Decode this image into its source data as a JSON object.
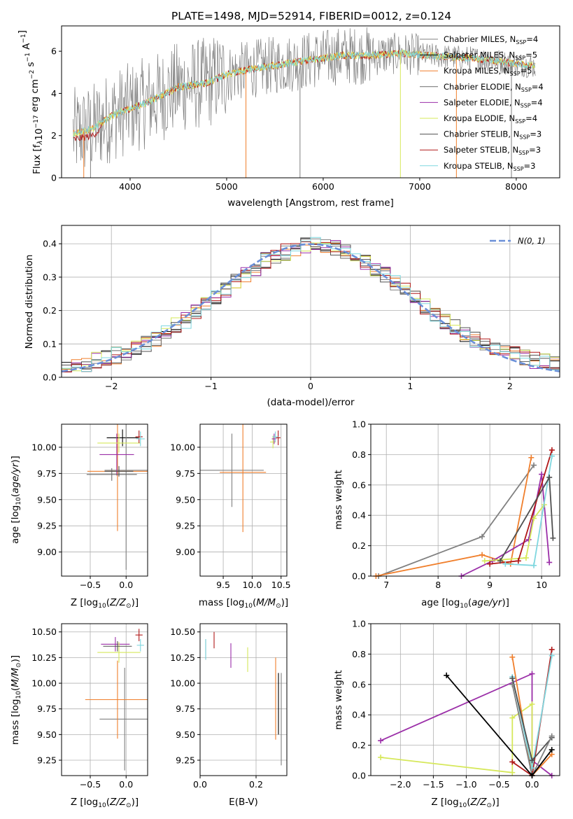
{
  "title": "PLATE=1498, MJD=52914, FIBERID=0012, z=0.124",
  "colors": {
    "Chabrier MILES": "#808080",
    "Salpeter MILES": "#000000",
    "Kroupa MILES": "#f07f2c",
    "Chabrier ELODIE": "#6b6b6b",
    "Salpeter ELODIE": "#9b2fa8",
    "Kroupa ELODIE": "#d6e85a",
    "Chabrier STELIB": "#505050",
    "Salpeter STELIB": "#b01818",
    "Kroupa STELIB": "#7fd7df"
  },
  "legend": [
    {
      "name": "Chabrier MILES",
      "nssp": "4"
    },
    {
      "name": "Salpeter MILES",
      "nssp": "5"
    },
    {
      "name": "Kroupa MILES",
      "nssp": "5"
    },
    {
      "name": "Chabrier ELODIE",
      "nssp": "4"
    },
    {
      "name": "Salpeter ELODIE",
      "nssp": "4"
    },
    {
      "name": "Kroupa ELODIE",
      "nssp": "4"
    },
    {
      "name": "Chabrier STELIB",
      "nssp": "3"
    },
    {
      "name": "Salpeter STELIB",
      "nssp": "3"
    },
    {
      "name": "Kroupa STELIB",
      "nssp": "3"
    }
  ],
  "chart_data": [
    {
      "id": "spectrum",
      "type": "line",
      "xlabel": "wavelength [Angstrom, rest frame]",
      "ylabel_text": "Flux [f",
      "ylabel_rest": "10",
      "ylabel_unit": " erg cm",
      "ylabel_unit2": " s",
      "ylabel_unit3": " A",
      "xlim": [
        3290,
        8450
      ],
      "ylim": [
        0,
        7.2
      ],
      "xticks": [
        4000,
        5000,
        6000,
        7000,
        8000
      ],
      "yticks": [
        0,
        2,
        4,
        6
      ],
      "continuum_x": [
        3410,
        3600,
        3800,
        4000,
        4200,
        4500,
        4800,
        5000,
        5300,
        5600,
        5900,
        6200,
        6500,
        6800,
        7100,
        7400,
        7700,
        8000,
        8200
      ],
      "continuum_y": [
        2.1,
        2.3,
        2.9,
        3.3,
        3.6,
        4.3,
        4.5,
        4.9,
        5.2,
        5.4,
        5.6,
        5.8,
        5.8,
        5.9,
        5.8,
        5.7,
        5.6,
        5.4,
        5.3
      ]
    },
    {
      "id": "residuals",
      "type": "area",
      "xlabel": "(data-model)/error",
      "ylabel": "Normed distribution",
      "xlim": [
        -2.5,
        2.5
      ],
      "ylim": [
        0,
        0.455
      ],
      "xticks": [
        -2,
        -1,
        0,
        1,
        2
      ],
      "yticks": [
        0.0,
        0.1,
        0.2,
        0.3,
        0.4
      ],
      "legend": "N(0, 1)",
      "bin_centers": [
        -2.45,
        -2.35,
        -2.25,
        -2.15,
        -2.05,
        -1.95,
        -1.85,
        -1.75,
        -1.65,
        -1.55,
        -1.45,
        -1.35,
        -1.25,
        -1.15,
        -1.05,
        -0.95,
        -0.85,
        -0.75,
        -0.65,
        -0.55,
        -0.45,
        -0.35,
        -0.25,
        -0.15,
        -0.05,
        0.05,
        0.15,
        0.25,
        0.35,
        0.45,
        0.55,
        0.65,
        0.75,
        0.85,
        0.95,
        1.05,
        1.15,
        1.25,
        1.35,
        1.45,
        1.55,
        1.65,
        1.75,
        1.85,
        1.95,
        2.05,
        2.15,
        2.25,
        2.35,
        2.45
      ],
      "hist": [
        0.025,
        0.03,
        0.04,
        0.05,
        0.06,
        0.065,
        0.075,
        0.09,
        0.1,
        0.115,
        0.14,
        0.155,
        0.17,
        0.195,
        0.215,
        0.235,
        0.26,
        0.285,
        0.305,
        0.325,
        0.35,
        0.36,
        0.375,
        0.385,
        0.395,
        0.4,
        0.395,
        0.385,
        0.375,
        0.36,
        0.345,
        0.325,
        0.305,
        0.285,
        0.26,
        0.235,
        0.21,
        0.185,
        0.165,
        0.15,
        0.13,
        0.115,
        0.1,
        0.09,
        0.08,
        0.07,
        0.06,
        0.05,
        0.045,
        0.04
      ]
    },
    {
      "id": "age-vs-Z",
      "type": "scatter",
      "xlabel": "Z [log",
      "ylabel": "age  [log",
      "xlim": [
        -0.9,
        0.3
      ],
      "ylim": [
        8.77,
        10.22
      ],
      "xticks": [
        -0.5,
        0.0
      ],
      "yticks": [
        9.0,
        9.25,
        9.5,
        9.75,
        10.0
      ],
      "points": [
        {
          "series": "Kroupa MILES",
          "x": -0.12,
          "xerr": 0.42,
          "y": 9.77,
          "yerr": 0.57
        },
        {
          "series": "Salpeter MILES",
          "x": -0.05,
          "xerr": 0.22,
          "y": 10.09,
          "yerr": 0.08
        },
        {
          "series": "Chabrier MILES",
          "x": 0.0,
          "xerr": 0.3,
          "y": 9.78,
          "yerr": 0.95
        },
        {
          "series": "Salpeter ELODIE",
          "x": -0.13,
          "xerr": 0.24,
          "y": 9.93,
          "yerr": 0.2
        },
        {
          "series": "Kroupa ELODIE",
          "x": -0.1,
          "xerr": 0.3,
          "y": 10.04,
          "yerr": 0.09
        },
        {
          "series": "Salpeter STELIB",
          "x": 0.18,
          "xerr": 0.05,
          "y": 10.1,
          "yerr": 0.06
        },
        {
          "series": "Kroupa STELIB",
          "x": 0.2,
          "xerr": 0.06,
          "y": 10.08,
          "yerr": 0.07
        },
        {
          "series": "Chabrier ELODIE",
          "x": -0.2,
          "xerr": 0.35,
          "y": 9.74,
          "yerr": 0.06
        },
        {
          "series": "Chabrier STELIB",
          "x": -0.1,
          "xerr": 0.2,
          "y": 9.77,
          "yerr": 0.05
        }
      ]
    },
    {
      "id": "age-vs-mass",
      "type": "scatter",
      "xlabel": "mass [log",
      "xlim": [
        9.1,
        10.6
      ],
      "ylim": [
        8.77,
        10.22
      ],
      "xticks": [
        9.5,
        10.0,
        10.5
      ],
      "yticks": [
        9.0,
        9.25,
        9.5,
        9.75,
        10.0
      ],
      "points": [
        {
          "series": "Chabrier MILES",
          "x": 9.65,
          "xerr": 0.55,
          "y": 9.78,
          "yerr": 0.35
        },
        {
          "series": "Kroupa MILES",
          "x": 9.84,
          "xerr": 0.4,
          "y": 9.76,
          "yerr": 0.57
        },
        {
          "series": "Salpeter STELIB",
          "x": 10.45,
          "xerr": 0.04,
          "y": 10.09,
          "yerr": 0.07
        },
        {
          "series": "Kroupa ELODIE",
          "x": 10.36,
          "xerr": 0.05,
          "y": 10.05,
          "yerr": 0.06
        },
        {
          "series": "Salpeter ELODIE",
          "x": 10.38,
          "xerr": 0.04,
          "y": 10.08,
          "yerr": 0.05
        },
        {
          "series": "Kroupa STELIB",
          "x": 10.4,
          "xerr": 0.05,
          "y": 10.1,
          "yerr": 0.05
        }
      ]
    },
    {
      "id": "mass-weight-vs-age",
      "type": "line",
      "xlabel": "age  [log",
      "ylabel": "mass weight",
      "xlim": [
        6.7,
        10.35
      ],
      "ylim": [
        0,
        1.0
      ],
      "xticks": [
        7,
        8,
        9,
        10
      ],
      "yticks": [
        0.0,
        0.2,
        0.4,
        0.6,
        0.8,
        1.0
      ],
      "series": [
        {
          "name": "Chabrier MILES",
          "x": [
            6.85,
            8.85,
            9.85
          ],
          "y": [
            0.0,
            0.26,
            0.73
          ]
        },
        {
          "name": "Kroupa MILES",
          "x": [
            6.8,
            8.85,
            9.4,
            9.8
          ],
          "y": [
            0.0,
            0.14,
            0.08,
            0.78
          ]
        },
        {
          "name": "Salpeter ELODIE",
          "x": [
            8.45,
            9.05,
            9.75,
            10.0,
            10.15
          ],
          "y": [
            0.0,
            0.1,
            0.24,
            0.67,
            0.09
          ]
        },
        {
          "name": "Kroupa ELODIE",
          "x": [
            8.9,
            9.7,
            9.85,
            10.05
          ],
          "y": [
            0.1,
            0.12,
            0.38,
            0.47
          ]
        },
        {
          "name": "Salpeter STELIB",
          "x": [
            9.0,
            9.55,
            10.2
          ],
          "y": [
            0.08,
            0.1,
            0.83
          ]
        },
        {
          "name": "Kroupa STELIB",
          "x": [
            9.3,
            9.85,
            10.2
          ],
          "y": [
            0.08,
            0.07,
            0.79
          ]
        },
        {
          "name": "Chabrier STELIB",
          "x": [
            9.2,
            10.15,
            10.22
          ],
          "y": [
            0.1,
            0.65,
            0.25
          ]
        }
      ]
    },
    {
      "id": "mass-vs-Z",
      "type": "scatter",
      "xlabel": "Z [log",
      "ylabel": "mass [log",
      "xlim": [
        -0.9,
        0.3
      ],
      "ylim": [
        9.1,
        10.58
      ],
      "xticks": [
        -0.5,
        0.0
      ],
      "yticks": [
        9.25,
        9.5,
        9.75,
        10.0,
        10.25,
        10.5
      ],
      "points": [
        {
          "series": "Chabrier MILES",
          "x": -0.02,
          "xerr": 0.35,
          "y": 9.65,
          "yerr": 0.5
        },
        {
          "series": "Kroupa MILES",
          "x": -0.12,
          "xerr": 0.45,
          "y": 9.84,
          "yerr": 0.38
        },
        {
          "series": "Salpeter STELIB",
          "x": 0.18,
          "xerr": 0.05,
          "y": 10.47,
          "yerr": 0.06
        },
        {
          "series": "Kroupa STELIB",
          "x": 0.2,
          "xerr": 0.05,
          "y": 10.37,
          "yerr": 0.06
        },
        {
          "series": "Salpeter ELODIE",
          "x": -0.15,
          "xerr": 0.2,
          "y": 10.38,
          "yerr": 0.07
        },
        {
          "series": "Kroupa ELODIE",
          "x": -0.1,
          "xerr": 0.3,
          "y": 10.3,
          "yerr": 0.1
        },
        {
          "series": "Chabrier STELIB",
          "x": -0.12,
          "xerr": 0.2,
          "y": 10.36,
          "yerr": 0.05
        }
      ]
    },
    {
      "id": "mass-vs-EBV",
      "type": "scatter",
      "xlabel": "E(B-V)",
      "xlim": [
        0.0,
        0.31
      ],
      "ylim": [
        9.1,
        10.58
      ],
      "xticks": [
        0.0,
        0.2
      ],
      "yticks": [
        9.25,
        9.5,
        9.75,
        10.0,
        10.25,
        10.5
      ],
      "points": [
        {
          "series": "Chabrier STELIB",
          "x": 0.02,
          "y": 10.33,
          "yerr": 0.1
        },
        {
          "series": "Kroupa STELIB",
          "x": 0.02,
          "y": 10.33,
          "yerr": 0.1
        },
        {
          "series": "Salpeter STELIB",
          "x": 0.05,
          "y": 10.42,
          "yerr": 0.08
        },
        {
          "series": "Salpeter ELODIE",
          "x": 0.11,
          "y": 10.27,
          "yerr": 0.12
        },
        {
          "series": "Kroupa ELODIE",
          "x": 0.17,
          "y": 10.23,
          "yerr": 0.12
        },
        {
          "series": "Kroupa MILES",
          "x": 0.27,
          "y": 9.85,
          "yerr": 0.4
        },
        {
          "series": "Salpeter MILES",
          "x": 0.28,
          "y": 9.8,
          "yerr": 0.3
        },
        {
          "series": "Chabrier MILES",
          "x": 0.29,
          "y": 9.65,
          "yerr": 0.45
        }
      ]
    },
    {
      "id": "mass-weight-vs-Z",
      "type": "line",
      "xlabel": "Z [log",
      "ylabel": "mass weight",
      "xlim": [
        -2.45,
        0.42
      ],
      "ylim": [
        0,
        1.0
      ],
      "xticks": [
        -2.0,
        -1.5,
        -1.0,
        -0.5,
        0.0
      ],
      "yticks": [
        0.0,
        0.2,
        0.4,
        0.6,
        0.8,
        1.0
      ],
      "series": [
        {
          "name": "Salpeter ELODIE",
          "x": [
            -2.3,
            0.0,
            0.0,
            0.3
          ],
          "y": [
            0.23,
            0.67,
            0.1,
            0.0
          ]
        },
        {
          "name": "Kroupa ELODIE",
          "x": [
            -2.3,
            -0.3,
            -0.3,
            0.0,
            0.0
          ],
          "y": [
            0.12,
            0.02,
            0.38,
            0.47,
            0.05
          ]
        },
        {
          "name": "Kroupa MILES",
          "x": [
            -0.3,
            0.0,
            0.3
          ],
          "y": [
            0.78,
            0.0,
            0.14
          ]
        },
        {
          "name": "Salpeter STELIB",
          "x": [
            -0.3,
            0.0,
            0.3
          ],
          "y": [
            0.09,
            0.0,
            0.83
          ]
        },
        {
          "name": "Kroupa STELIB",
          "x": [
            -0.3,
            0.0,
            0.3
          ],
          "y": [
            0.65,
            0.05,
            0.79
          ]
        },
        {
          "name": "Chabrier STELIB",
          "x": [
            -0.3,
            0.0,
            0.3
          ],
          "y": [
            0.64,
            0.1,
            0.25
          ]
        },
        {
          "name": "Chabrier MILES",
          "x": [
            -0.3,
            0.0,
            0.3
          ],
          "y": [
            0.6,
            0.0,
            0.26
          ]
        },
        {
          "name": "Salpeter MILES",
          "x": [
            -1.3,
            0.0,
            0.3
          ],
          "y": [
            0.66,
            0.0,
            0.17
          ]
        }
      ]
    }
  ]
}
